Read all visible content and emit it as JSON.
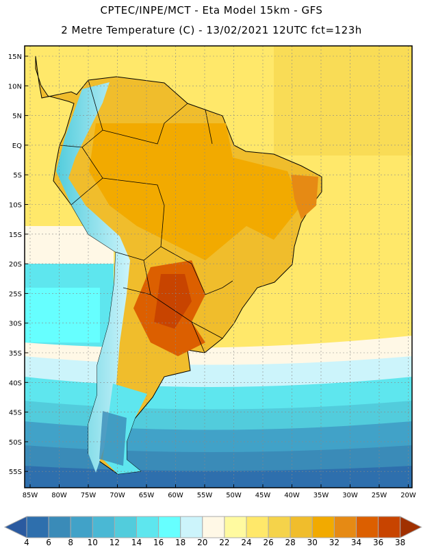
{
  "header": {
    "title": "CPTEC/INPE/MCT -  Eta Model 15km - GFS",
    "subtitle": "2 Metre Temperature (C) - 13/02/2021 12UTC fct=123h"
  },
  "map": {
    "lat_labels": [
      "15N",
      "10N",
      "5N",
      "EQ",
      "5S",
      "10S",
      "15S",
      "20S",
      "25S",
      "30S",
      "35S",
      "40S",
      "45S",
      "50S",
      "55S"
    ],
    "lon_labels": [
      "85W",
      "80W",
      "75W",
      "70W",
      "65W",
      "60W",
      "55W",
      "50W",
      "45W",
      "40W",
      "35W",
      "30W",
      "25W",
      "20W"
    ]
  },
  "colorbar": {
    "labels": [
      "4",
      "6",
      "8",
      "10",
      "12",
      "14",
      "16",
      "18",
      "20",
      "22",
      "24",
      "26",
      "28",
      "30",
      "32",
      "34",
      "36",
      "38"
    ],
    "under_color": "#2a5aa0",
    "over_color": "#a03000",
    "colors": [
      "#2e6fad",
      "#3a8bb8",
      "#41a2c8",
      "#4ab8d4",
      "#52ccdc",
      "#5ee6ee",
      "#66ffff",
      "#ccf4fb",
      "#fff8e6",
      "#fffaa0",
      "#ffe86a",
      "#f5d34a",
      "#f0bd2c",
      "#f2aa00",
      "#e68a14",
      "#dc5f00",
      "#c84400"
    ]
  }
}
